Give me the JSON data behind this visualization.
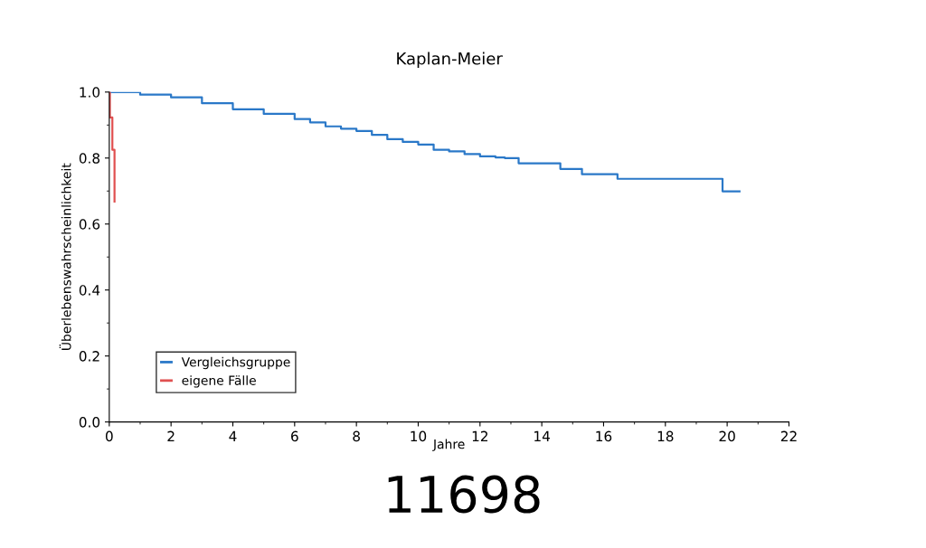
{
  "chart_data": {
    "type": "step",
    "title": "Kaplan-Meier",
    "xlabel": "Jahre",
    "ylabel": "Überlebenswahrscheinlichkeit",
    "xlim": [
      0,
      22
    ],
    "xticks": [
      0,
      2,
      4,
      6,
      8,
      10,
      12,
      14,
      16,
      18,
      20,
      22
    ],
    "ylim": [
      0,
      1.0
    ],
    "yticks": [
      {
        "value": 0,
        "label": "0.0"
      },
      0.2,
      0.4,
      0.6,
      0.8,
      {
        "value": 1,
        "label": "1.0"
      }
    ],
    "grid": false,
    "legend": "bottom left",
    "marker": "none",
    "line_style": "solid",
    "series": [
      {
        "name": "Vergleichsgruppe",
        "color": "#2a78c8",
        "x": [
          0,
          1,
          2,
          3,
          4,
          5,
          6,
          6.5,
          7,
          7.5,
          8,
          8.5,
          9,
          9.5,
          10,
          10.5,
          11,
          11.5,
          12,
          12.5,
          12.8,
          13.25,
          14.6,
          15.3,
          16.45,
          19.85,
          20.4
        ],
        "values": [
          1.0,
          0.992,
          0.984,
          0.966,
          0.948,
          0.934,
          0.918,
          0.908,
          0.896,
          0.889,
          0.882,
          0.87,
          0.857,
          0.849,
          0.841,
          0.825,
          0.82,
          0.812,
          0.805,
          0.802,
          0.8,
          0.784,
          0.767,
          0.751,
          0.737,
          0.699,
          0.699
        ]
      },
      {
        "name": "eigene Fälle",
        "color": "#e05050",
        "x": [
          0,
          0.02,
          0.1,
          0.17
        ],
        "values": [
          1.0,
          0.923,
          0.825,
          0.668
        ]
      }
    ],
    "annotations": [
      "11698"
    ]
  }
}
